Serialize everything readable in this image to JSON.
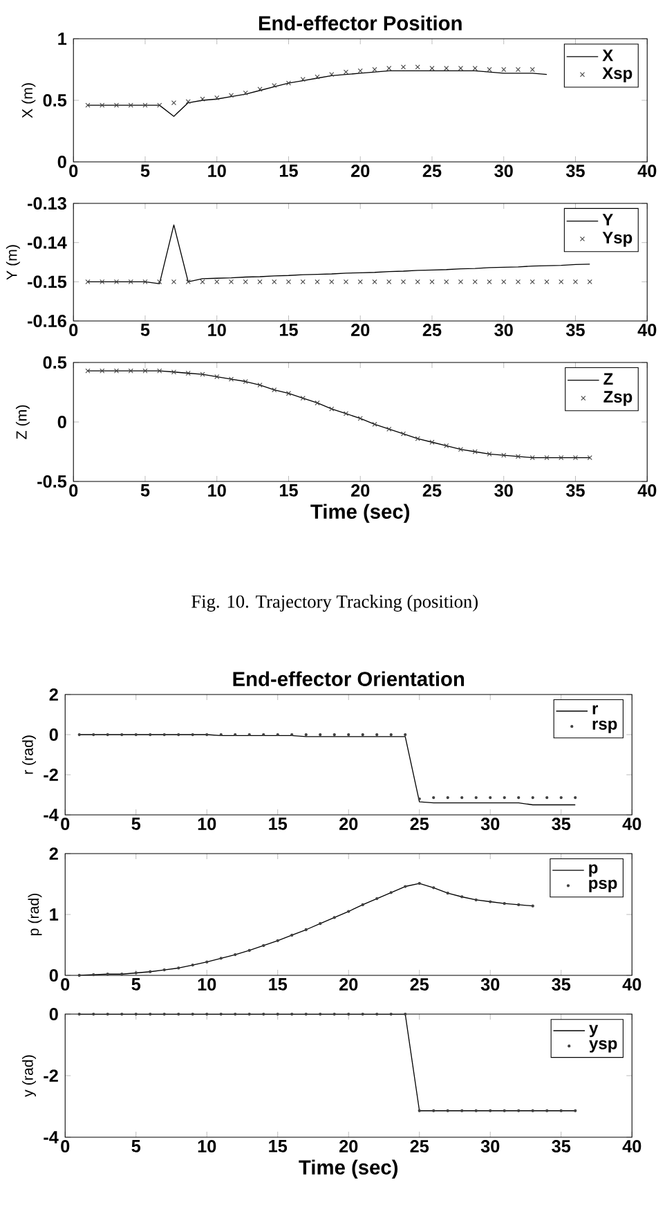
{
  "chart_data": [
    {
      "type": "line",
      "title": "End-effector Position",
      "ylabel": "X (m)",
      "xlim": [
        0,
        40
      ],
      "xticks": [
        0,
        5,
        10,
        15,
        20,
        25,
        30,
        35,
        40
      ],
      "ylim": [
        0,
        1
      ],
      "yticks": [
        0,
        0.5,
        1
      ],
      "legend": "top right",
      "series": [
        {
          "name": "X",
          "type": "line",
          "color": "#000000",
          "marker": "none",
          "line_style": "solid",
          "x": [
            1,
            2,
            3,
            4,
            5,
            6,
            7,
            8,
            9,
            10,
            11,
            12,
            13,
            14,
            15,
            16,
            17,
            18,
            19,
            20,
            21,
            22,
            23,
            24,
            25,
            26,
            27,
            28,
            29,
            30,
            31,
            32,
            33
          ],
          "values": [
            0.46,
            0.46,
            0.46,
            0.46,
            0.46,
            0.46,
            0.37,
            0.48,
            0.5,
            0.51,
            0.53,
            0.55,
            0.58,
            0.61,
            0.64,
            0.66,
            0.68,
            0.7,
            0.71,
            0.72,
            0.73,
            0.74,
            0.74,
            0.74,
            0.74,
            0.74,
            0.74,
            0.74,
            0.73,
            0.72,
            0.72,
            0.72,
            0.71
          ]
        },
        {
          "name": "Xsp",
          "type": "scatter",
          "color": "#404040",
          "marker": "cross",
          "x": [
            1,
            2,
            3,
            4,
            5,
            6,
            7,
            8,
            9,
            10,
            11,
            12,
            13,
            14,
            15,
            16,
            17,
            18,
            19,
            20,
            21,
            22,
            23,
            24,
            25,
            26,
            27,
            28,
            29,
            30,
            31,
            32
          ],
          "values": [
            0.46,
            0.46,
            0.46,
            0.46,
            0.46,
            0.46,
            0.48,
            0.49,
            0.51,
            0.52,
            0.54,
            0.56,
            0.59,
            0.62,
            0.64,
            0.67,
            0.69,
            0.71,
            0.73,
            0.74,
            0.75,
            0.76,
            0.77,
            0.77,
            0.76,
            0.76,
            0.76,
            0.76,
            0.75,
            0.75,
            0.75,
            0.75
          ]
        }
      ]
    },
    {
      "type": "line",
      "ylabel": "Y (m)",
      "xlim": [
        0,
        40
      ],
      "xticks": [
        0,
        5,
        10,
        15,
        20,
        25,
        30,
        35,
        40
      ],
      "ylim": [
        -0.16,
        -0.13
      ],
      "yticks": [
        -0.16,
        -0.15,
        -0.14,
        -0.13
      ],
      "legend": "top right",
      "x": [
        1,
        2,
        3,
        4,
        5,
        6,
        7,
        8,
        9,
        10,
        11,
        12,
        13,
        14,
        15,
        16,
        17,
        18,
        19,
        20,
        21,
        22,
        23,
        24,
        25,
        26,
        27,
        28,
        29,
        30,
        31,
        32,
        33,
        34,
        35,
        36
      ],
      "series": [
        {
          "name": "Y",
          "type": "line",
          "color": "#000000",
          "marker": "none",
          "line_style": "solid",
          "values": [
            -0.15,
            -0.15,
            -0.15,
            -0.15,
            -0.15,
            -0.1505,
            -0.1355,
            -0.15,
            -0.1492,
            -0.1491,
            -0.149,
            -0.1488,
            -0.1487,
            -0.1485,
            -0.1484,
            -0.1482,
            -0.1481,
            -0.148,
            -0.1478,
            -0.1477,
            -0.1476,
            -0.1474,
            -0.1473,
            -0.1471,
            -0.147,
            -0.1469,
            -0.1467,
            -0.1466,
            -0.1464,
            -0.1463,
            -0.1462,
            -0.146,
            -0.1459,
            -0.1458,
            -0.1456,
            -0.1455
          ]
        },
        {
          "name": "Ysp",
          "type": "scatter",
          "color": "#404040",
          "marker": "cross",
          "values": [
            -0.15,
            -0.15,
            -0.15,
            -0.15,
            -0.15,
            -0.15,
            -0.15,
            -0.15,
            -0.15,
            -0.15,
            -0.15,
            -0.15,
            -0.15,
            -0.15,
            -0.15,
            -0.15,
            -0.15,
            -0.15,
            -0.15,
            -0.15,
            -0.15,
            -0.15,
            -0.15,
            -0.15,
            -0.15,
            -0.15,
            -0.15,
            -0.15,
            -0.15,
            -0.15,
            -0.15,
            -0.15,
            -0.15,
            -0.15,
            -0.15,
            -0.15
          ]
        }
      ]
    },
    {
      "type": "line",
      "ylabel": "Z (m)",
      "xlabel": "Time (sec)",
      "annotations": [
        "Fig. 10. Trajectory Tracking (position)"
      ],
      "xlim": [
        0,
        40
      ],
      "xticks": [
        0,
        5,
        10,
        15,
        20,
        25,
        30,
        35,
        40
      ],
      "ylim": [
        -0.5,
        0.5
      ],
      "yticks": [
        -0.5,
        0,
        0.5
      ],
      "legend": "top right",
      "x": [
        1,
        2,
        3,
        4,
        5,
        6,
        7,
        8,
        9,
        10,
        11,
        12,
        13,
        14,
        15,
        16,
        17,
        18,
        19,
        20,
        21,
        22,
        23,
        24,
        25,
        26,
        27,
        28,
        29,
        30,
        31,
        32,
        33,
        34,
        35,
        36
      ],
      "series": [
        {
          "name": "Z",
          "type": "line",
          "color": "#000000",
          "marker": "none",
          "line_style": "solid",
          "values": [
            0.43,
            0.43,
            0.43,
            0.43,
            0.43,
            0.43,
            0.42,
            0.41,
            0.4,
            0.38,
            0.36,
            0.34,
            0.31,
            0.27,
            0.24,
            0.2,
            0.16,
            0.11,
            0.07,
            0.03,
            -0.02,
            -0.06,
            -0.1,
            -0.14,
            -0.17,
            -0.2,
            -0.23,
            -0.25,
            -0.27,
            -0.28,
            -0.29,
            -0.3,
            -0.3,
            -0.3,
            -0.3,
            -0.3
          ]
        },
        {
          "name": "Zsp",
          "type": "scatter",
          "color": "#404040",
          "marker": "cross",
          "values": [
            0.43,
            0.43,
            0.43,
            0.43,
            0.43,
            0.43,
            0.42,
            0.41,
            0.4,
            0.38,
            0.36,
            0.34,
            0.31,
            0.27,
            0.24,
            0.2,
            0.16,
            0.11,
            0.07,
            0.03,
            -0.02,
            -0.06,
            -0.1,
            -0.14,
            -0.17,
            -0.2,
            -0.23,
            -0.25,
            -0.27,
            -0.28,
            -0.29,
            -0.3,
            -0.3,
            -0.3,
            -0.3,
            -0.3
          ]
        }
      ]
    },
    {
      "type": "line",
      "title": "End-effector Orientation",
      "ylabel": "r (rad)",
      "xlim": [
        0,
        40
      ],
      "xticks": [
        0,
        5,
        10,
        15,
        20,
        25,
        30,
        35,
        40
      ],
      "ylim": [
        -4,
        2
      ],
      "yticks": [
        -4,
        -2,
        0,
        2
      ],
      "legend": "top right",
      "x": [
        1,
        2,
        3,
        4,
        5,
        6,
        7,
        8,
        9,
        10,
        11,
        12,
        13,
        14,
        15,
        16,
        17,
        18,
        19,
        20,
        21,
        22,
        23,
        24,
        25,
        26,
        27,
        28,
        29,
        30,
        31,
        32,
        33,
        34,
        35,
        36
      ],
      "series": [
        {
          "name": "r",
          "type": "line",
          "color": "#000000",
          "marker": "none",
          "line_style": "solid",
          "values": [
            0,
            0,
            0,
            0,
            0,
            0,
            0,
            0,
            0,
            0,
            -0.05,
            -0.05,
            -0.05,
            -0.05,
            -0.05,
            -0.05,
            -0.1,
            -0.1,
            -0.1,
            -0.1,
            -0.1,
            -0.1,
            -0.1,
            -0.1,
            -3.35,
            -3.4,
            -3.4,
            -3.4,
            -3.4,
            -3.4,
            -3.4,
            -3.4,
            -3.5,
            -3.5,
            -3.5,
            -3.5
          ]
        },
        {
          "name": "rsp",
          "type": "scatter",
          "color": "#404040",
          "marker": "circle",
          "values": [
            0,
            0,
            0,
            0,
            0,
            0,
            0,
            0,
            0,
            0,
            0,
            0,
            0,
            0,
            0,
            0,
            0,
            0,
            0,
            0,
            0,
            0,
            0,
            0,
            -3.2,
            -3.14,
            -3.14,
            -3.14,
            -3.14,
            -3.14,
            -3.14,
            -3.14,
            -3.14,
            -3.14,
            -3.14,
            -3.14
          ]
        }
      ]
    },
    {
      "type": "line",
      "ylabel": "p (rad)",
      "xlim": [
        0,
        40
      ],
      "xticks": [
        0,
        5,
        10,
        15,
        20,
        25,
        30,
        35,
        40
      ],
      "ylim": [
        0,
        2
      ],
      "yticks": [
        0,
        1,
        2
      ],
      "legend": "top right",
      "x": [
        1,
        2,
        3,
        4,
        5,
        6,
        7,
        8,
        9,
        10,
        11,
        12,
        13,
        14,
        15,
        16,
        17,
        18,
        19,
        20,
        21,
        22,
        23,
        24,
        25,
        26,
        27,
        28,
        29,
        30,
        31,
        32,
        33
      ],
      "series": [
        {
          "name": "p",
          "type": "line",
          "color": "#000000",
          "marker": "none",
          "line_style": "solid",
          "values": [
            0,
            0.01,
            0.02,
            0.02,
            0.04,
            0.06,
            0.09,
            0.12,
            0.17,
            0.22,
            0.28,
            0.34,
            0.41,
            0.49,
            0.57,
            0.66,
            0.75,
            0.85,
            0.95,
            1.05,
            1.16,
            1.26,
            1.36,
            1.46,
            1.51,
            1.44,
            1.35,
            1.29,
            1.24,
            1.21,
            1.18,
            1.16,
            1.14
          ]
        },
        {
          "name": "psp",
          "type": "scatter",
          "color": "#404040",
          "marker": "circle",
          "values": [
            0,
            0.01,
            0.02,
            0.02,
            0.04,
            0.06,
            0.09,
            0.12,
            0.17,
            0.22,
            0.28,
            0.34,
            0.41,
            0.49,
            0.57,
            0.66,
            0.75,
            0.85,
            0.95,
            1.05,
            1.16,
            1.26,
            1.36,
            1.46,
            1.51,
            1.44,
            1.35,
            1.29,
            1.24,
            1.21,
            1.18,
            1.16,
            1.14
          ]
        }
      ]
    },
    {
      "type": "line",
      "ylabel": "y (rad)",
      "xlabel": "Time (sec)",
      "xlim": [
        0,
        40
      ],
      "xticks": [
        0,
        5,
        10,
        15,
        20,
        25,
        30,
        35,
        40
      ],
      "ylim": [
        -4,
        0
      ],
      "yticks": [
        -4,
        -2,
        0
      ],
      "legend": "top right",
      "x": [
        1,
        2,
        3,
        4,
        5,
        6,
        7,
        8,
        9,
        10,
        11,
        12,
        13,
        14,
        15,
        16,
        17,
        18,
        19,
        20,
        21,
        22,
        23,
        24,
        25,
        26,
        27,
        28,
        29,
        30,
        31,
        32,
        33,
        34,
        35,
        36
      ],
      "series": [
        {
          "name": "y",
          "type": "line",
          "color": "#000000",
          "marker": "none",
          "line_style": "solid",
          "values": [
            0,
            0,
            0,
            0,
            0,
            0,
            0,
            0,
            0,
            0,
            0,
            0,
            0,
            0,
            0,
            0,
            0,
            0,
            0,
            0,
            0,
            0,
            0,
            0,
            -3.14,
            -3.14,
            -3.14,
            -3.14,
            -3.14,
            -3.14,
            -3.14,
            -3.14,
            -3.14,
            -3.14,
            -3.14,
            -3.14
          ]
        },
        {
          "name": "ysp",
          "type": "scatter",
          "color": "#404040",
          "marker": "circle",
          "values": [
            0,
            0,
            0,
            0,
            0,
            0,
            0,
            0,
            0,
            0,
            0,
            0,
            0,
            0,
            0,
            0,
            0,
            0,
            0,
            0,
            0,
            0,
            0,
            0,
            -3.14,
            -3.14,
            -3.14,
            -3.14,
            -3.14,
            -3.14,
            -3.14,
            -3.14,
            -3.14,
            -3.14,
            -3.14,
            -3.14
          ]
        }
      ]
    }
  ]
}
